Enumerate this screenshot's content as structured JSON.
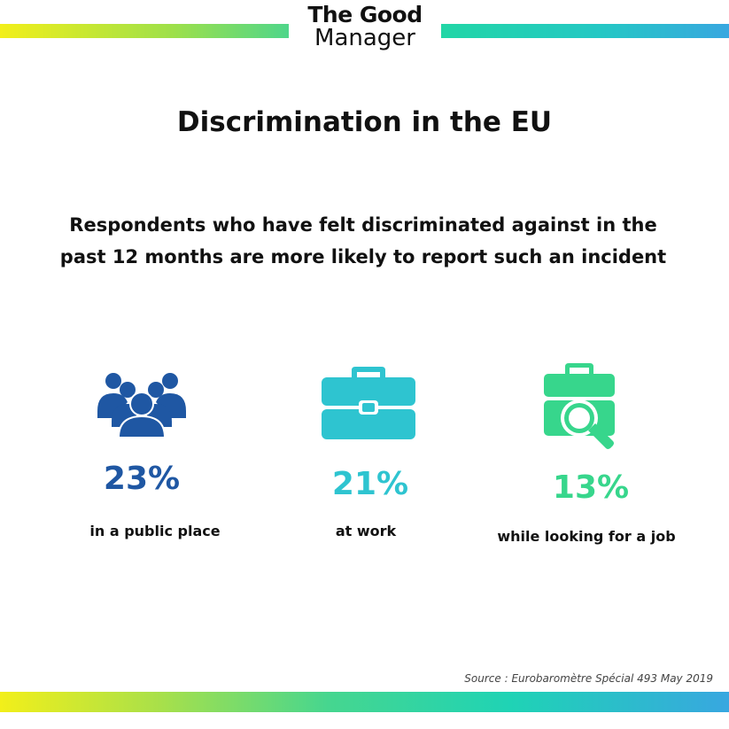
{
  "logo": {
    "line1_a": "The G",
    "line1_oo": "oo",
    "line1_b": "d",
    "line2": "Manager"
  },
  "title": "Discrimination in the EU",
  "subtitle": "Respondents who have felt discriminated against in the past 12 months are more likely to report such an incident",
  "stats": [
    {
      "value": "23%",
      "label": "in a public place",
      "color": "#1f57a3",
      "icon": "people-group-icon"
    },
    {
      "value": "21%",
      "label": "at work",
      "color": "#2ec4d0",
      "icon": "briefcase-icon"
    },
    {
      "value": "13%",
      "label": "while looking for a job",
      "color": "#37d68c",
      "icon": "briefcase-search-icon"
    }
  ],
  "source": "Source : Eurobaromètre Spécial 493 May 2019",
  "colors": {
    "blue": "#1f57a3",
    "cyan": "#2ec4d0",
    "green": "#37d68c"
  }
}
